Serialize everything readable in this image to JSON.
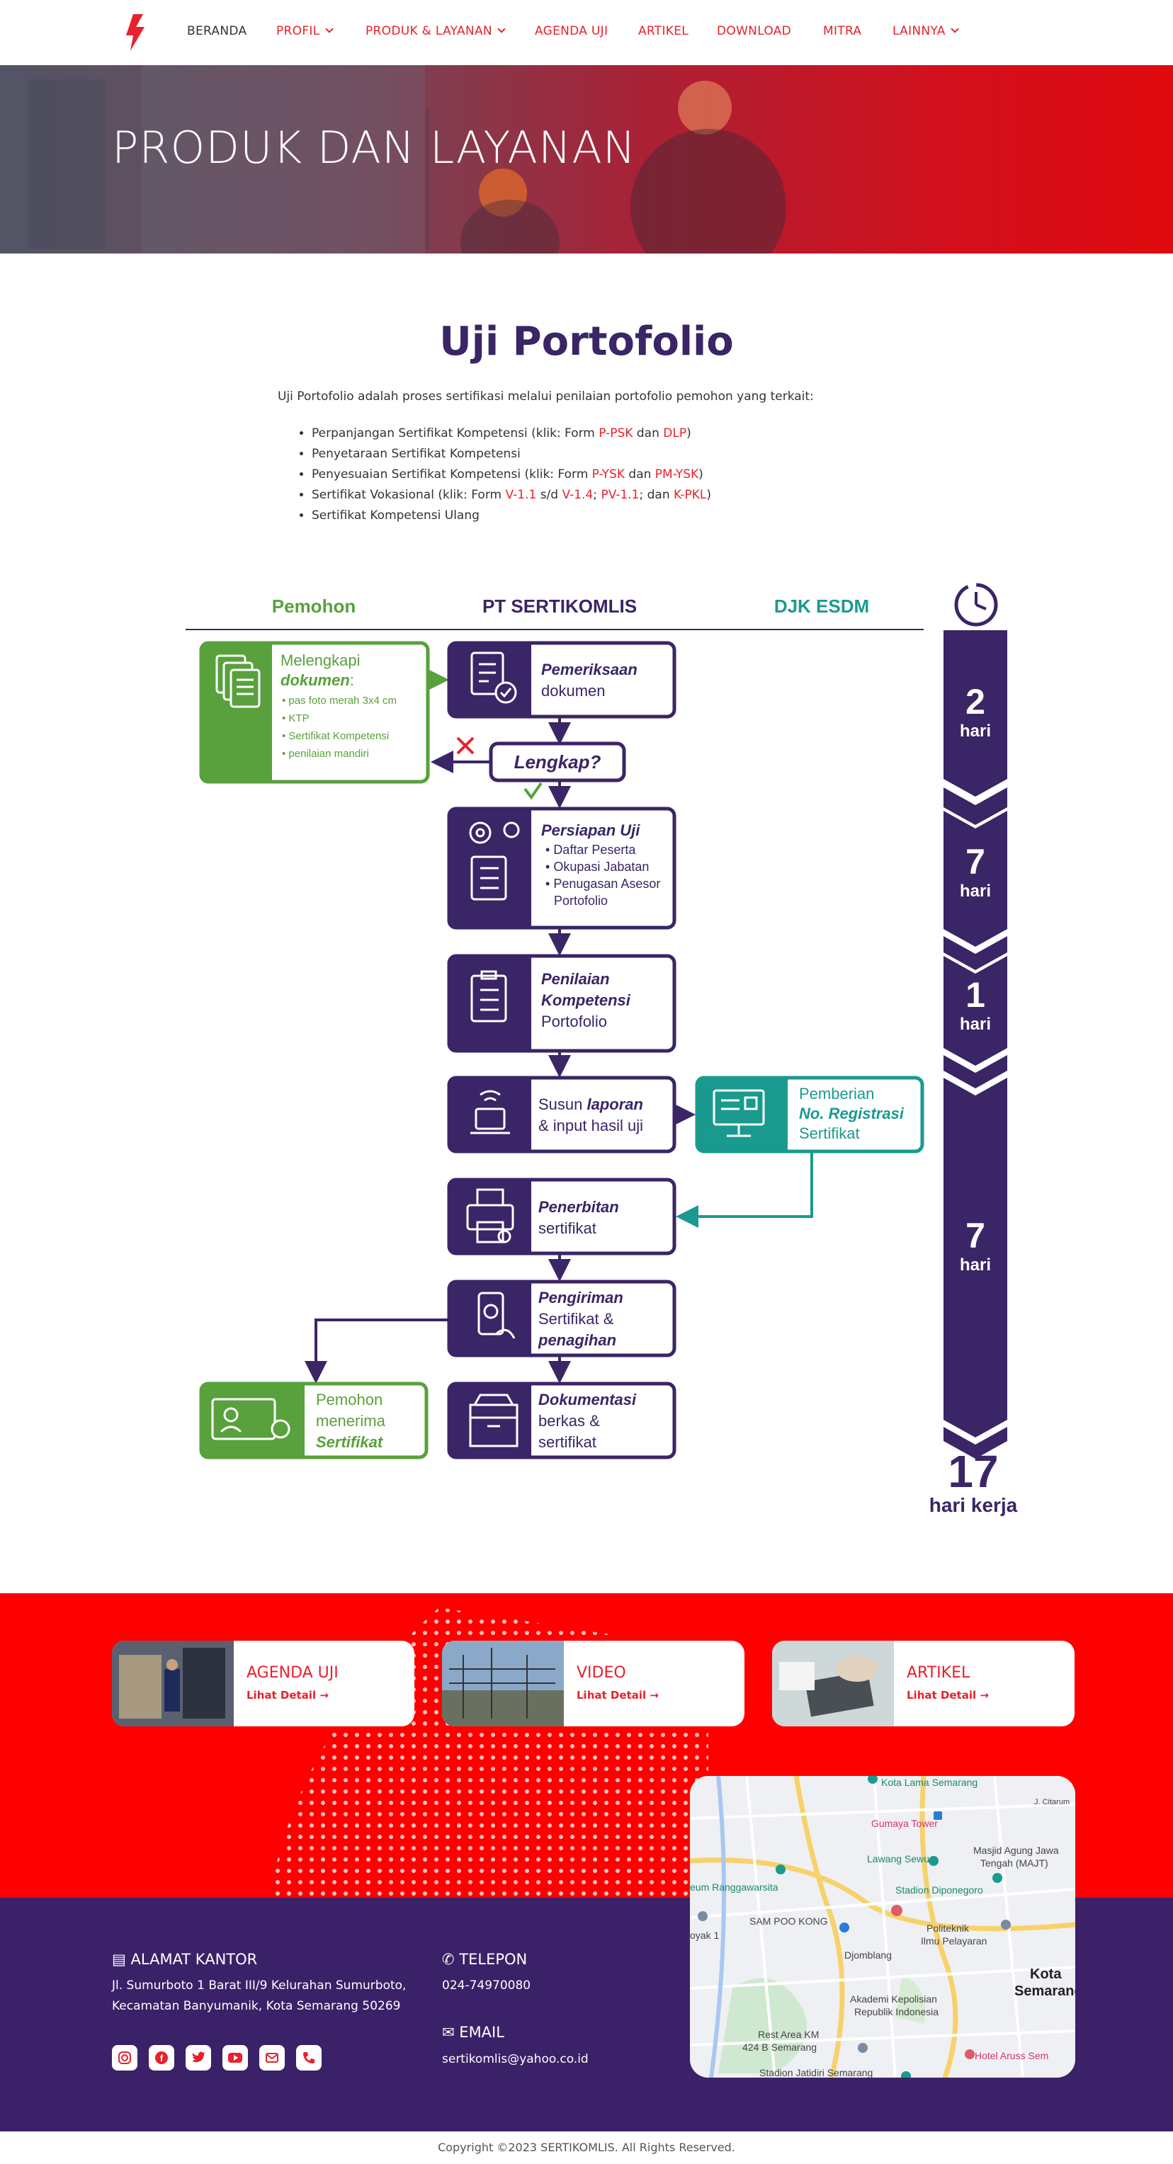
{
  "nav": {
    "items": [
      {
        "label": "BERANDA"
      },
      {
        "label": "PROFIL"
      },
      {
        "label": "PRODUK & LAYANAN"
      },
      {
        "label": "AGENDA UJI"
      },
      {
        "label": "ARTIKEL"
      },
      {
        "label": "DOWNLOAD"
      },
      {
        "label": "MITRA"
      },
      {
        "label": "LAINNYA"
      }
    ]
  },
  "hero": {
    "title": "PRODUK DAN LAYANAN"
  },
  "content": {
    "title": "Uji Portofolio",
    "intro": "Uji Portofolio adalah proses sertifikasi melalui penilaian portofolio pemohon yang terkait:",
    "bullets": {
      "b1": {
        "pre": "Perpanjangan Sertifikat Kompetensi (klik: Form ",
        "l1": "P-PSK",
        "mid": " dan ",
        "l2": "DLP",
        "post": ")"
      },
      "b2": {
        "text": "Penyetaraan Sertifikat Kompetensi"
      },
      "b3": {
        "pre": "Penyesuaian Sertifikat Kompetensi (klik: Form ",
        "l1": "P-YSK",
        "mid": " dan ",
        "l2": "PM-YSK",
        "post": ")"
      },
      "b4": {
        "pre": "Sertifikat Vokasional (klik: Form ",
        "l1": "V-1.1",
        "s1": " s/d ",
        "l2": "V-1.4",
        "s2": "; ",
        "l3": "PV-1.1",
        "s3": "; dan ",
        "l4": "K-PKL",
        "post": ")"
      },
      "b5": {
        "text": "Sertifikat Kompetensi Ulang"
      }
    }
  },
  "flow": {
    "cols": {
      "c1": "Pemohon",
      "c2": "PT SERTIKOMLIS",
      "c3": "DJK ESDM"
    },
    "melengkapi": {
      "t1": "Melengkapi",
      "t2": "dokumen",
      "t3": ":",
      "items": {
        "i1": "pas foto merah 3x4 cm",
        "i2": "KTP",
        "i3": "Sertifikat Kompetensi",
        "i4": "penilaian mandiri"
      }
    },
    "pemeriksaan": {
      "t1": "Pemeriksaan",
      "t2": "dokumen"
    },
    "lengkap": "Lengkap?",
    "persiapan": {
      "t1": "Persiapan Uji",
      "items": {
        "i1": "Daftar Peserta",
        "i2": "Okupasi Jabatan",
        "i3": "Penugasan Asesor",
        "i4": "Portofolio"
      }
    },
    "penilaian": {
      "t1": "Penilaian",
      "t2": "Kompetensi",
      "t3": "Portofolio"
    },
    "susun": {
      "t1": "Susun ",
      "t2": "laporan",
      "t3": "& input hasil uji"
    },
    "pemberian": {
      "t1": "Pemberian",
      "t2": "No. Registrasi",
      "t3": "Sertifikat"
    },
    "penerbitan": {
      "t1": "Penerbitan",
      "t2": "sertifikat"
    },
    "pengiriman": {
      "t1": "Pengiriman",
      "t2": "Sertifikat &",
      "t3": "penagihan"
    },
    "dokumentasi": {
      "t1": "Dokumentasi",
      "t2": "berkas &",
      "t3": "sertifikat"
    },
    "menerima": {
      "t1": "Pemohon",
      "t2": "menerima",
      "t3": "Sertifikat"
    },
    "timeline": {
      "d1": "2",
      "d2": "7",
      "d3": "1",
      "d4": "7",
      "unit": "hari",
      "total": "17",
      "total_unit": "hari kerja"
    }
  },
  "cards": {
    "c1": {
      "title": "AGENDA UJI",
      "link": "Lihat Detail →"
    },
    "c2": {
      "title": "VIDEO",
      "link": "Lihat Detail →"
    },
    "c3": {
      "title": "ARTIKEL",
      "link": "Lihat Detail →"
    }
  },
  "map": {
    "labels": {
      "l1": "Kota Lama Semarang",
      "l2": "Gumaya Tower",
      "l3": "Masjid Agung Jawa",
      "l4": "Tengah (MAJT)",
      "l5": "Lawang Sewu",
      "l6": "Stadion Diponegoro",
      "l7": "eum Ranggawarsita",
      "l8": "SAM POO KONG",
      "l9": "Politeknik",
      "l10": "Ilmu Pelayaran",
      "l11": "Djomblang",
      "l12": "Kota",
      "l13": "Semarang",
      "l14": "Akademi Kepolisian",
      "l15": "Republik Indonesia",
      "l16": "Rest Area KM",
      "l17": "424 B Semarang",
      "l18": "Hotel Aruss Sem",
      "l19": "Stadion Jatidiri Semarang",
      "l20": "J. Citarum",
      "l21": "oyak 1"
    }
  },
  "footer": {
    "address_heading": "ALAMAT KANTOR",
    "address_line1": "Jl. Sumurboto 1 Barat III/9 Kelurahan Sumurboto,",
    "address_line2": "Kecamatan Banyumanik, Kota Semarang 50269",
    "phone_heading": "TELEPON",
    "phone": "024-74970080",
    "email_heading": "EMAIL",
    "email": "sertikomlis@yahoo.co.id",
    "socials": {
      "s1": "instagram-icon",
      "s2": "facebook-icon",
      "s3": "twitter-icon",
      "s4": "youtube-icon",
      "s5": "email-icon",
      "s6": "phone-icon"
    }
  },
  "copyright": "Copyright ©2023 SERTIKOMLIS. All Rights Reserved.",
  "colors": {
    "brand_red": "#e8212c",
    "purple": "#3a2566",
    "green": "#58a13d",
    "teal": "#1a9a8f"
  }
}
